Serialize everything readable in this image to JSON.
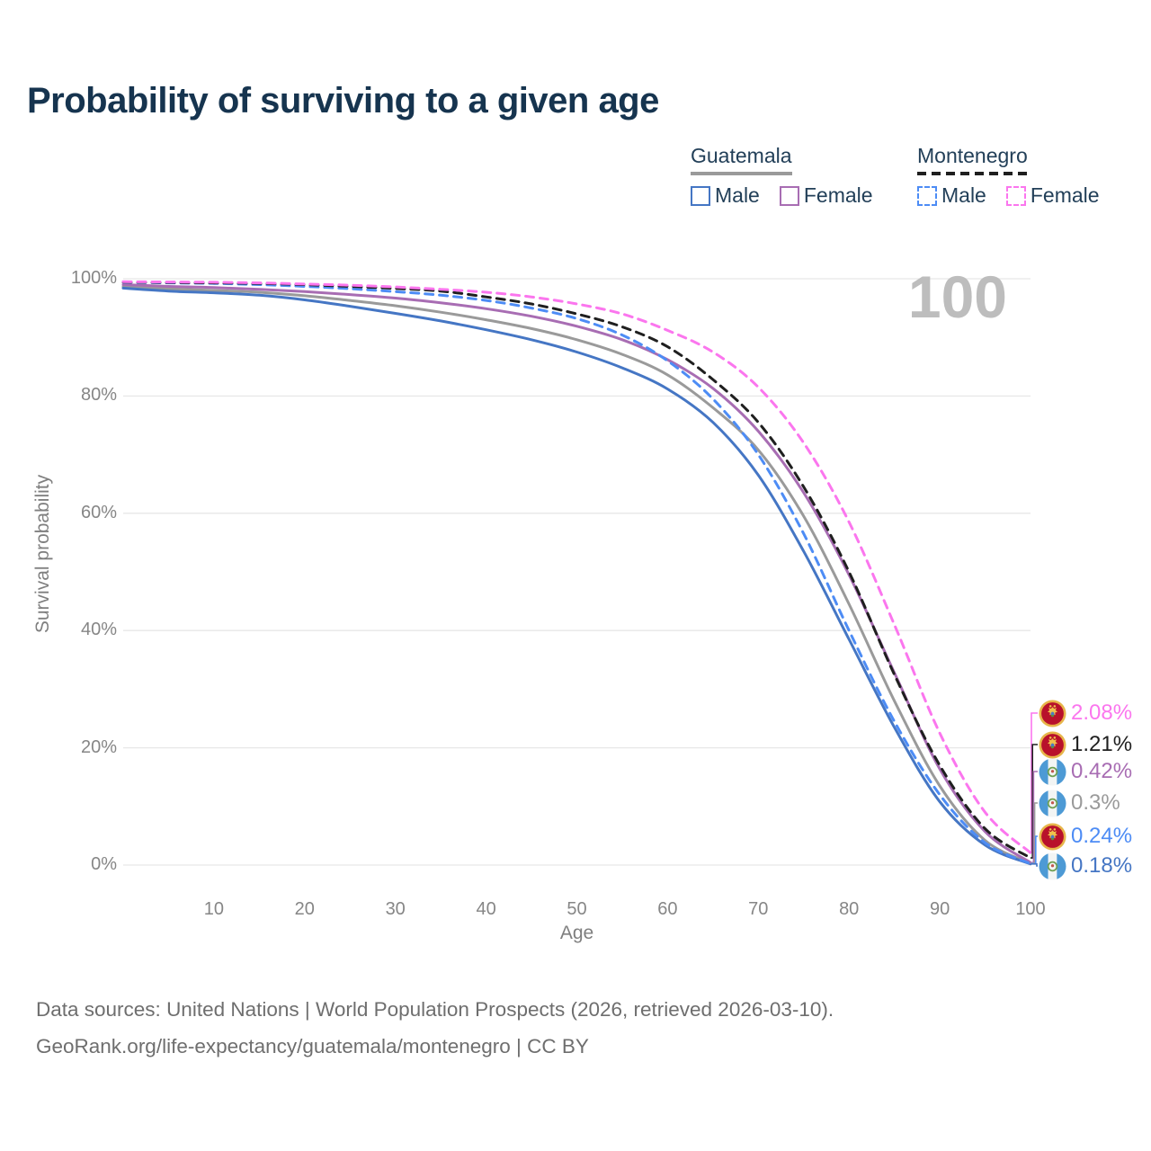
{
  "title": "Probability of surviving to a given age",
  "watermark": "100",
  "legend": {
    "groups": [
      {
        "name": "Guatemala",
        "line_style": "solid",
        "underline_color": "#9a9a9a",
        "items": [
          {
            "label": "Male",
            "color": "#4576c4",
            "box_style": "solid"
          },
          {
            "label": "Female",
            "color": "#a86db3",
            "box_style": "solid"
          }
        ]
      },
      {
        "name": "Montenegro",
        "line_style": "dashed",
        "underline_color": "#1f1f1f",
        "items": [
          {
            "label": "Male",
            "color": "#4d8cf5",
            "box_style": "dashed"
          },
          {
            "label": "Female",
            "color": "#fb76ee",
            "box_style": "dashed"
          }
        ]
      }
    ]
  },
  "chart_data": {
    "type": "line",
    "title": "Probability of surviving to a given age",
    "xlabel": "Age",
    "ylabel": "Survival probability",
    "xlim": [
      0,
      100
    ],
    "ylim": [
      0,
      100
    ],
    "grid": "horizontal",
    "legend_position": "top-right",
    "x_ticks": [
      {
        "value": 10,
        "label": "10"
      },
      {
        "value": 20,
        "label": "20"
      },
      {
        "value": 30,
        "label": "30"
      },
      {
        "value": 40,
        "label": "40"
      },
      {
        "value": 50,
        "label": "50"
      },
      {
        "value": 60,
        "label": "60"
      },
      {
        "value": 70,
        "label": "70"
      },
      {
        "value": 80,
        "label": "80"
      },
      {
        "value": 90,
        "label": "90"
      },
      {
        "value": 100,
        "label": "100"
      }
    ],
    "y_ticks": [
      {
        "value": 0,
        "label": "0%"
      },
      {
        "value": 20,
        "label": "20%"
      },
      {
        "value": 40,
        "label": "40%"
      },
      {
        "value": 60,
        "label": "60%"
      },
      {
        "value": 80,
        "label": "80%"
      },
      {
        "value": 100,
        "label": "100%"
      }
    ],
    "x": [
      0,
      5,
      10,
      15,
      20,
      25,
      30,
      35,
      40,
      45,
      50,
      55,
      60,
      65,
      70,
      75,
      80,
      85,
      90,
      95,
      100
    ],
    "series": [
      {
        "key": "gtm_total",
        "country": "Guatemala",
        "sex": null,
        "color": "#9a9a9a",
        "dash": "solid",
        "values": [
          98.7,
          98.3,
          98.0,
          97.7,
          97.1,
          96.3,
          95.4,
          94.3,
          93.0,
          91.5,
          89.6,
          87.1,
          83.6,
          78.0,
          70.8,
          59.5,
          44.5,
          28.0,
          13.5,
          4.2,
          0.3
        ]
      },
      {
        "key": "gtm_male",
        "country": "Guatemala",
        "sex": "Male",
        "color": "#4576c4",
        "dash": "solid",
        "values": [
          98.4,
          97.9,
          97.6,
          97.2,
          96.4,
          95.3,
          94.1,
          92.8,
          91.3,
          89.6,
          87.5,
          84.8,
          81.2,
          75.5,
          66.5,
          53.5,
          38.5,
          23.5,
          10.8,
          3.4,
          0.18
        ]
      },
      {
        "key": "gtm_female",
        "country": "Guatemala",
        "sex": "Female",
        "color": "#a86db3",
        "dash": "solid",
        "values": [
          99.0,
          98.7,
          98.5,
          98.2,
          97.8,
          97.3,
          96.7,
          95.9,
          94.9,
          93.6,
          91.9,
          89.6,
          86.2,
          81.3,
          74.0,
          63.5,
          49.5,
          32.8,
          16.4,
          5.7,
          0.42
        ]
      },
      {
        "key": "mne_male",
        "country": "Montenegro",
        "sex": "Male",
        "color": "#4d8cf5",
        "dash": "dashed",
        "values": [
          99.4,
          99.3,
          99.2,
          99.0,
          98.7,
          98.3,
          97.8,
          97.2,
          96.3,
          95.0,
          93.2,
          90.4,
          86.0,
          79.5,
          70.0,
          56.5,
          40.0,
          24.5,
          12.0,
          3.8,
          0.24
        ]
      },
      {
        "key": "mne_total",
        "country": "Montenegro",
        "sex": null,
        "color": "#1f1f1f",
        "dash": "dashed",
        "values": [
          99.45,
          99.37,
          99.3,
          99.2,
          99.0,
          98.7,
          98.35,
          97.9,
          96.9,
          95.7,
          94.0,
          91.8,
          88.4,
          82.8,
          75.5,
          64.5,
          50.0,
          32.5,
          17.0,
          6.2,
          1.21
        ]
      },
      {
        "key": "mne_female",
        "country": "Montenegro",
        "sex": "Female",
        "color": "#fb76ee",
        "dash": "dashed",
        "values": [
          99.5,
          99.45,
          99.4,
          99.3,
          99.1,
          98.9,
          98.6,
          98.2,
          97.7,
          96.9,
          95.7,
          94.0,
          91.2,
          87.5,
          81.5,
          72.0,
          58.5,
          41.0,
          22.5,
          9.0,
          2.08
        ]
      }
    ],
    "end_labels": [
      {
        "series": "mne_female",
        "label": "2.08%",
        "flag": "montenegro"
      },
      {
        "series": "mne_total",
        "label": "1.21%",
        "flag": "montenegro"
      },
      {
        "series": "gtm_female",
        "label": "0.42%",
        "flag": "guatemala"
      },
      {
        "series": "gtm_total",
        "label": "0.3%",
        "flag": "guatemala"
      },
      {
        "series": "mne_male",
        "label": "0.24%",
        "flag": "montenegro"
      },
      {
        "series": "gtm_male",
        "label": "0.18%",
        "flag": "guatemala"
      }
    ]
  },
  "footer": {
    "line1": "Data sources: United Nations | World Population Prospects (2026, retrieved 2026-03-10).",
    "line2": "GeoRank.org/life-expectancy/guatemala/montenegro | CC BY"
  },
  "colors": {
    "title": "#16344f",
    "axis_text": "#868686",
    "gridline": "#e7e7e7",
    "watermark": "#bdbdbd",
    "footer_text": "#6e6e6e"
  }
}
